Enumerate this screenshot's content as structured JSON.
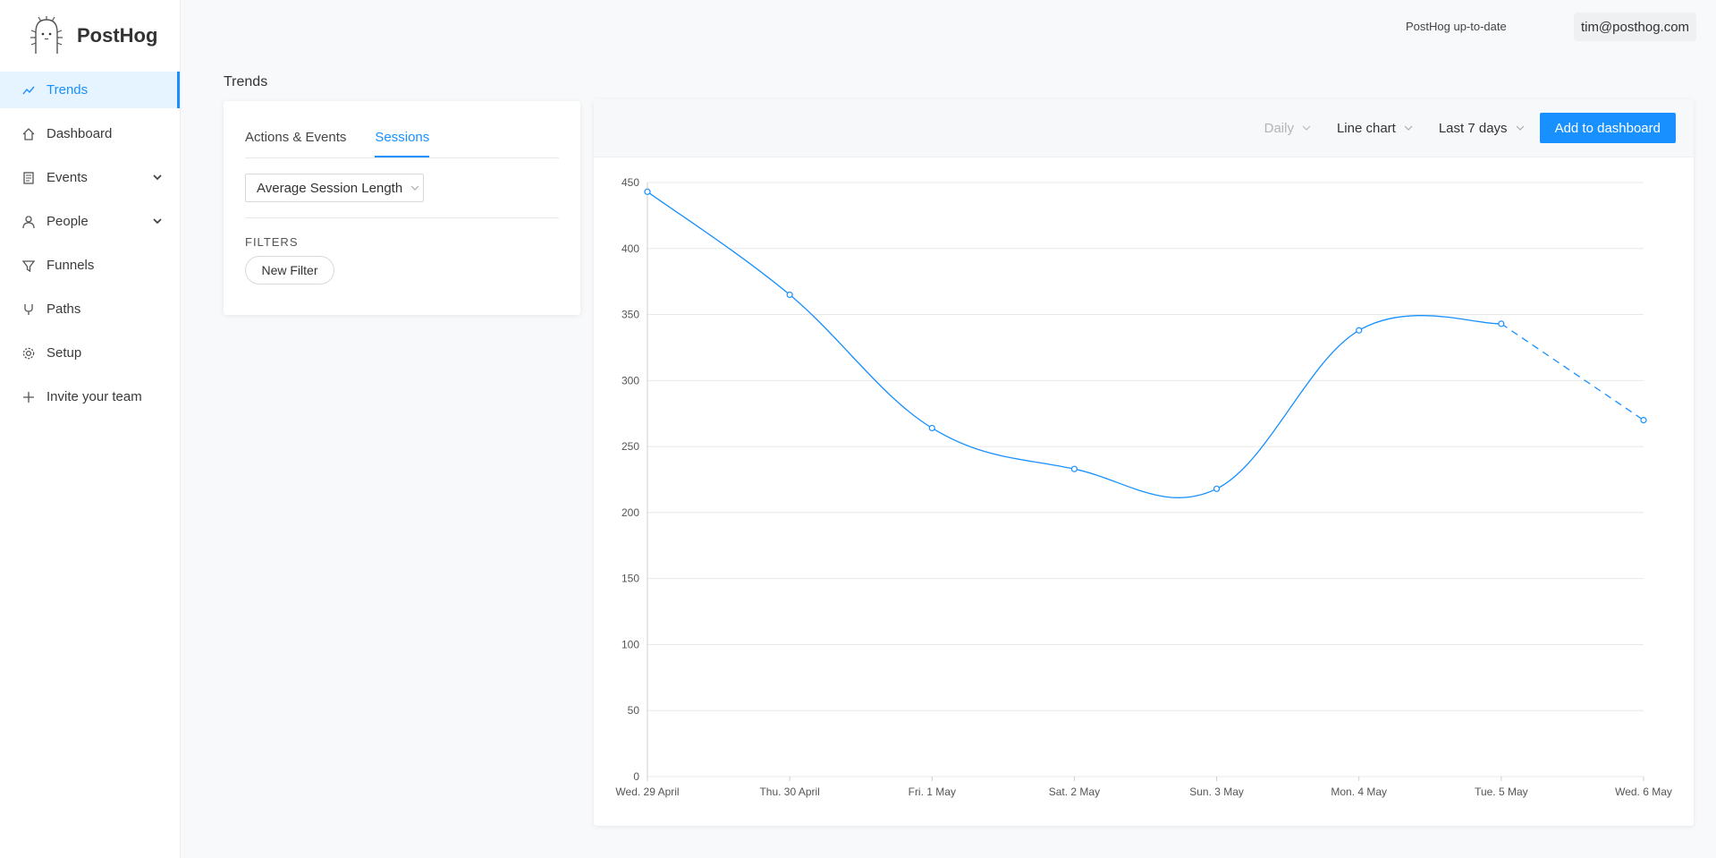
{
  "app": {
    "name": "PostHog"
  },
  "sidebar": {
    "items": [
      {
        "label": "Trends",
        "icon": "trend-line-icon",
        "active": true
      },
      {
        "label": "Dashboard",
        "icon": "home-icon"
      },
      {
        "label": "Events",
        "icon": "document-icon",
        "expandable": true
      },
      {
        "label": "People",
        "icon": "person-icon",
        "expandable": true
      },
      {
        "label": "Funnels",
        "icon": "funnel-icon"
      },
      {
        "label": "Paths",
        "icon": "branch-icon"
      },
      {
        "label": "Setup",
        "icon": "gear-icon"
      },
      {
        "label": "Invite your team",
        "icon": "plus-icon"
      }
    ]
  },
  "header": {
    "status": "PostHog up-to-date",
    "user_email": "tim@posthog.com"
  },
  "page": {
    "title": "Trends"
  },
  "query_panel": {
    "tabs": [
      {
        "label": "Actions & Events"
      },
      {
        "label": "Sessions",
        "active": true
      }
    ],
    "session_select": "Average Session Length",
    "filters_label": "FILTERS",
    "new_filter_label": "New Filter"
  },
  "chart_toolbar": {
    "interval": "Daily",
    "display": "Line chart",
    "date_range": "Last 7 days",
    "add_button": "Add to dashboard"
  },
  "colors": {
    "accent": "#1890ff",
    "gridline": "#e8e8e8"
  },
  "chart_data": {
    "type": "line",
    "categories": [
      "Wed. 29 April",
      "Thu. 30 April",
      "Fri. 1 May",
      "Sat. 2 May",
      "Sun. 3 May",
      "Mon. 4 May",
      "Tue. 5 May",
      "Wed. 6 May"
    ],
    "series": [
      {
        "values": [
          443,
          365,
          264,
          233,
          218,
          338,
          343,
          270
        ],
        "incomplete_last_point": true,
        "color": "#1890ff"
      }
    ],
    "ylim": [
      0,
      450
    ],
    "yticks": [
      0,
      50,
      100,
      150,
      200,
      250,
      300,
      350,
      400,
      450
    ],
    "grid": true,
    "legend": false
  }
}
